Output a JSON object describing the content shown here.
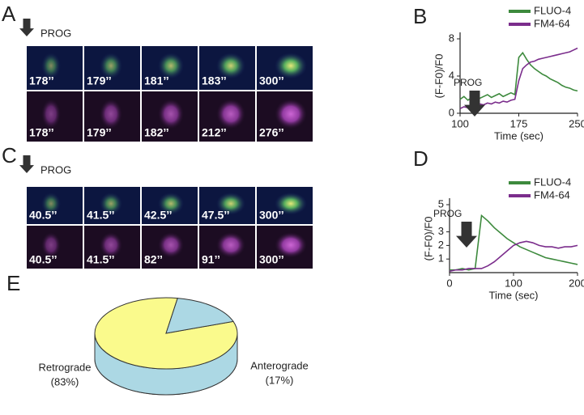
{
  "panels": [
    {
      "letter": "A",
      "annotation": "PROG",
      "rows": [
        [
          "178’’",
          "179’’",
          "181’’",
          "183’’",
          "300’’"
        ],
        [
          "178’’",
          "179’’",
          "182’’",
          "212’’",
          "276’’"
        ]
      ]
    },
    {
      "letter": "C",
      "annotation": "PROG",
      "rows": [
        [
          "40.5’’",
          "41.5’’",
          "42.5’’",
          "47.5’’",
          "300’’"
        ],
        [
          "40.5’’",
          "41.5’’",
          "82’’",
          "91’’",
          "300’’"
        ]
      ]
    }
  ],
  "chart_data": [
    {
      "type": "line",
      "panel": "B",
      "annotation": "PROG",
      "ylabel": "(F-F0)/F0",
      "xlabel": "Time (sec)",
      "x": [
        100,
        105,
        110,
        115,
        120,
        125,
        130,
        135,
        140,
        145,
        150,
        155,
        160,
        165,
        170,
        175,
        180,
        185,
        190,
        195,
        200,
        205,
        210,
        215,
        220,
        225,
        230,
        235,
        240,
        245,
        250
      ],
      "xlim": [
        100,
        250
      ],
      "xticks": [
        100,
        175,
        250
      ],
      "ylim": [
        0,
        8
      ],
      "yticks": [
        0,
        4,
        8
      ],
      "series": [
        {
          "name": "FLUO-4",
          "color": "#3d8a3d",
          "values": [
            1.5,
            1.8,
            1.4,
            1.7,
            1.9,
            1.6,
            1.8,
            2.0,
            1.7,
            1.9,
            2.1,
            1.8,
            2.0,
            2.2,
            2.0,
            6.0,
            6.5,
            5.8,
            5.2,
            4.8,
            4.5,
            4.2,
            4.0,
            3.7,
            3.5,
            3.3,
            3.0,
            2.8,
            2.7,
            2.5,
            2.4
          ]
        },
        {
          "name": "FM4-64",
          "color": "#7b2d8c",
          "values": [
            0.5,
            0.7,
            0.6,
            0.9,
            0.8,
            1.0,
            0.9,
            1.1,
            1.0,
            1.2,
            1.1,
            1.3,
            1.2,
            1.4,
            1.5,
            3.5,
            4.8,
            5.2,
            5.5,
            5.6,
            5.8,
            5.9,
            6.0,
            6.1,
            6.2,
            6.3,
            6.4,
            6.5,
            6.6,
            6.8,
            7.0
          ]
        }
      ]
    },
    {
      "type": "line",
      "panel": "D",
      "annotation": "PROG",
      "ylabel": "(F-F0)/F0",
      "xlabel": "Time (sec)",
      "x": [
        0,
        10,
        20,
        30,
        40,
        50,
        60,
        70,
        80,
        90,
        100,
        110,
        120,
        130,
        140,
        150,
        160,
        170,
        180,
        190,
        200
      ],
      "xlim": [
        0,
        200
      ],
      "xticks": [
        0,
        100,
        200
      ],
      "ylim": [
        0,
        5
      ],
      "yticks": [
        1,
        2,
        3,
        5
      ],
      "series": [
        {
          "name": "FLUO-4",
          "color": "#3d8a3d",
          "values": [
            0.2,
            0.2,
            0.3,
            0.2,
            0.3,
            4.2,
            3.8,
            3.3,
            2.9,
            2.5,
            2.2,
            1.9,
            1.7,
            1.5,
            1.3,
            1.1,
            1.0,
            0.9,
            0.8,
            0.7,
            0.6
          ]
        },
        {
          "name": "FM4-64",
          "color": "#7b2d8c",
          "values": [
            0.1,
            0.2,
            0.2,
            0.3,
            0.3,
            0.3,
            0.5,
            0.8,
            1.2,
            1.6,
            2.0,
            2.2,
            2.3,
            2.2,
            2.0,
            1.9,
            1.9,
            1.8,
            1.9,
            1.9,
            2.0
          ]
        }
      ]
    },
    {
      "type": "pie",
      "panel": "E",
      "categories": [
        "Retrograde",
        "Anterograde"
      ],
      "values": [
        83,
        17
      ],
      "value_labels": [
        "(83%)",
        "(17%)"
      ],
      "colors": [
        "#fafa8c",
        "#acd8e4"
      ]
    }
  ]
}
